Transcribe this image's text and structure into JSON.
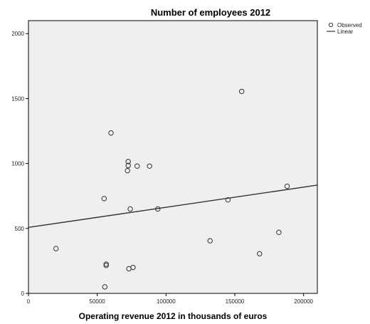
{
  "chart_data": {
    "type": "scatter",
    "title": "Number of employees 2012",
    "xlabel": "Operating revenue 2012 in thousands of euros",
    "ylabel": "",
    "xlim": [
      0,
      210000
    ],
    "ylim": [
      0,
      2100
    ],
    "x_ticks": [
      0,
      50000,
      100000,
      150000,
      200000
    ],
    "x_tick_labels": [
      "0",
      "50000",
      "100000",
      "150000",
      "200000"
    ],
    "y_ticks": [
      0,
      500,
      1000,
      1500,
      2000
    ],
    "y_tick_labels": [
      "0",
      "500",
      "1000",
      "1500",
      "2000"
    ],
    "grid": false,
    "plot_background": "#efefef",
    "series": [
      {
        "name": "Observed",
        "marker": "open-circle",
        "color": "#333333",
        "points": [
          {
            "x": 20000,
            "y": 345
          },
          {
            "x": 55000,
            "y": 730
          },
          {
            "x": 55500,
            "y": 50
          },
          {
            "x": 56500,
            "y": 215
          },
          {
            "x": 56500,
            "y": 225
          },
          {
            "x": 60000,
            "y": 1235
          },
          {
            "x": 72000,
            "y": 945
          },
          {
            "x": 72500,
            "y": 985
          },
          {
            "x": 72500,
            "y": 1015
          },
          {
            "x": 73000,
            "y": 190
          },
          {
            "x": 74000,
            "y": 650
          },
          {
            "x": 76000,
            "y": 200
          },
          {
            "x": 79000,
            "y": 980
          },
          {
            "x": 88000,
            "y": 980
          },
          {
            "x": 94000,
            "y": 650
          },
          {
            "x": 132000,
            "y": 405
          },
          {
            "x": 145000,
            "y": 720
          },
          {
            "x": 155000,
            "y": 1555
          },
          {
            "x": 168000,
            "y": 305
          },
          {
            "x": 182000,
            "y": 470
          },
          {
            "x": 188000,
            "y": 825
          }
        ]
      },
      {
        "name": "Linear",
        "type": "line",
        "color": "#333333",
        "intercept": 508,
        "slope": 0.00155
      }
    ],
    "legend": {
      "placement": "top-right-outside",
      "entries": [
        "Observed",
        "Linear"
      ]
    }
  }
}
